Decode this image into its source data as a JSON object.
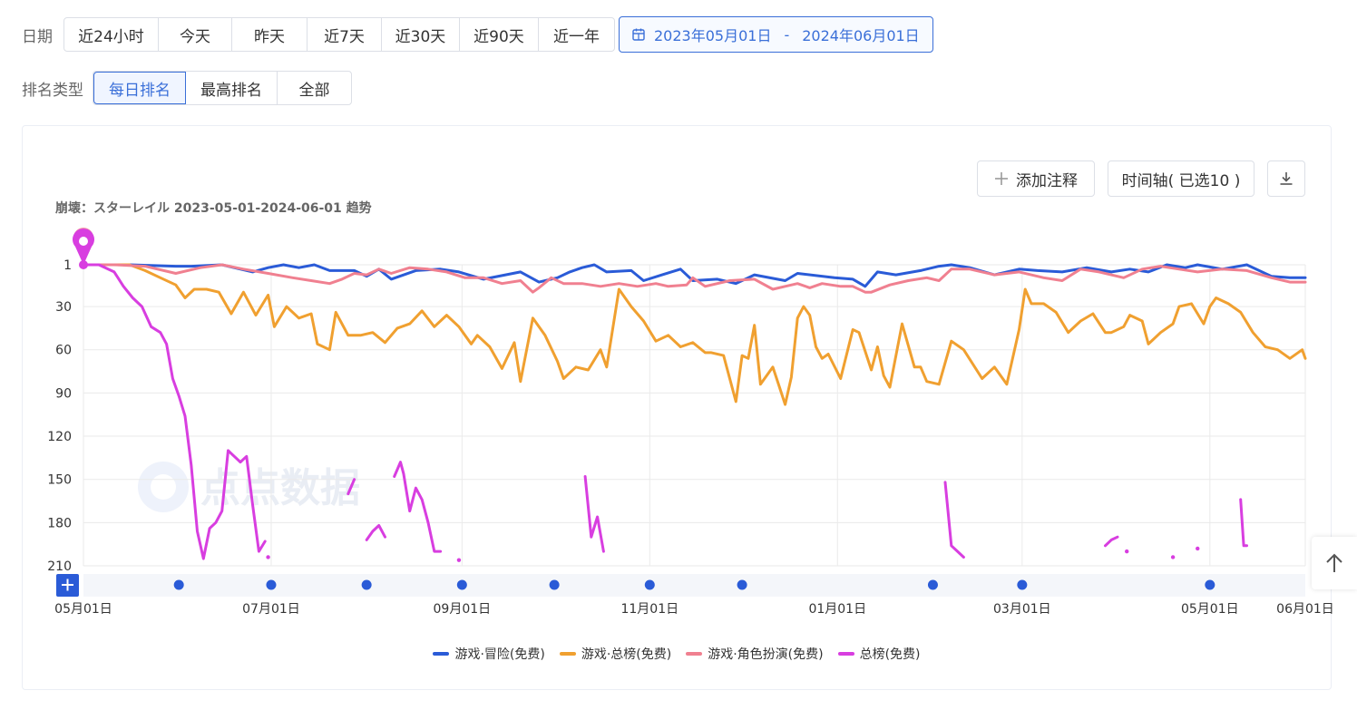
{
  "filters": {
    "date_label": "日期",
    "date_options": [
      "近24小时",
      "今天",
      "昨天",
      "近7天",
      "近30天",
      "近90天",
      "近一年"
    ],
    "date_range": {
      "start": "2023年05月01日",
      "separator": "-",
      "end": "2024年06月01日"
    },
    "rank_label": "排名类型",
    "rank_options": [
      "每日排名",
      "最高排名",
      "全部"
    ],
    "rank_selected": "每日排名"
  },
  "toolbar": {
    "add_note_label": "添加注释",
    "timeline_label": "时间轴( 已选10 )"
  },
  "watermark": "点点数据",
  "chart_data": {
    "type": "line",
    "title": "崩壊：スターレイル 2023-05-01-2024-06-01 趋势",
    "y_inverted": true,
    "ylim": [
      1,
      210
    ],
    "y_ticks": [
      "1",
      "30",
      "60",
      "90",
      "120",
      "150",
      "180",
      "210"
    ],
    "y_tick_values": [
      1,
      30,
      60,
      90,
      120,
      150,
      180,
      210
    ],
    "x_ticks": [
      "05月01日",
      "07月01日",
      "09月01日",
      "11月01日",
      "01月01日",
      "03月01日",
      "05月01日",
      "06月01日"
    ],
    "x_tick_days": [
      0,
      61,
      123,
      184,
      245,
      305,
      366,
      397
    ],
    "x_range_days": [
      0,
      397
    ],
    "grid": true,
    "legend_position": "bottom",
    "timeline_marker_days": [
      31,
      61,
      92,
      123,
      153,
      184,
      214,
      276,
      305,
      366
    ],
    "series": [
      {
        "name": "游戏·冒险(免费)",
        "color": "#2a5bd7",
        "points": [
          [
            0,
            1
          ],
          [
            15,
            1
          ],
          [
            30,
            2
          ],
          [
            35,
            2
          ],
          [
            45,
            1
          ],
          [
            55,
            6
          ],
          [
            60,
            3
          ],
          [
            65,
            1
          ],
          [
            70,
            3
          ],
          [
            75,
            1
          ],
          [
            80,
            5
          ],
          [
            88,
            5
          ],
          [
            92,
            9
          ],
          [
            96,
            4
          ],
          [
            100,
            11
          ],
          [
            108,
            5
          ],
          [
            116,
            4
          ],
          [
            122,
            6
          ],
          [
            130,
            11
          ],
          [
            142,
            6
          ],
          [
            148,
            13
          ],
          [
            154,
            10
          ],
          [
            158,
            6
          ],
          [
            162,
            3
          ],
          [
            166,
            1
          ],
          [
            170,
            6
          ],
          [
            178,
            5
          ],
          [
            182,
            12
          ],
          [
            188,
            8
          ],
          [
            194,
            4
          ],
          [
            198,
            12
          ],
          [
            206,
            11
          ],
          [
            212,
            14
          ],
          [
            218,
            8
          ],
          [
            228,
            12
          ],
          [
            232,
            7
          ],
          [
            244,
            10
          ],
          [
            250,
            11
          ],
          [
            254,
            16
          ],
          [
            258,
            6
          ],
          [
            264,
            8
          ],
          [
            272,
            5
          ],
          [
            278,
            2
          ],
          [
            282,
            1
          ],
          [
            288,
            3
          ],
          [
            296,
            8
          ],
          [
            304,
            4
          ],
          [
            310,
            5
          ],
          [
            318,
            6
          ],
          [
            326,
            3
          ],
          [
            334,
            6
          ],
          [
            340,
            4
          ],
          [
            346,
            6
          ],
          [
            352,
            1
          ],
          [
            358,
            3
          ],
          [
            362,
            1
          ],
          [
            370,
            4
          ],
          [
            378,
            1
          ],
          [
            386,
            9
          ],
          [
            392,
            10
          ],
          [
            397,
            10
          ]
        ]
      },
      {
        "name": "游戏·总榜(免费)",
        "color": "#f0a030",
        "points": [
          [
            0,
            1
          ],
          [
            15,
            1
          ],
          [
            20,
            5
          ],
          [
            25,
            10
          ],
          [
            30,
            15
          ],
          [
            33,
            24
          ],
          [
            36,
            18
          ],
          [
            40,
            18
          ],
          [
            44,
            20
          ],
          [
            48,
            35
          ],
          [
            52,
            20
          ],
          [
            56,
            36
          ],
          [
            60,
            22
          ],
          [
            62,
            44
          ],
          [
            66,
            30
          ],
          [
            70,
            38
          ],
          [
            74,
            35
          ],
          [
            76,
            56
          ],
          [
            80,
            60
          ],
          [
            82,
            34
          ],
          [
            86,
            50
          ],
          [
            90,
            50
          ],
          [
            94,
            48
          ],
          [
            98,
            55
          ],
          [
            102,
            45
          ],
          [
            106,
            42
          ],
          [
            110,
            33
          ],
          [
            114,
            44
          ],
          [
            118,
            36
          ],
          [
            122,
            44
          ],
          [
            126,
            56
          ],
          [
            128,
            50
          ],
          [
            132,
            58
          ],
          [
            136,
            73
          ],
          [
            140,
            55
          ],
          [
            142,
            82
          ],
          [
            146,
            38
          ],
          [
            150,
            50
          ],
          [
            154,
            68
          ],
          [
            156,
            80
          ],
          [
            160,
            72
          ],
          [
            164,
            74
          ],
          [
            168,
            60
          ],
          [
            170,
            72
          ],
          [
            174,
            18
          ],
          [
            178,
            30
          ],
          [
            182,
            40
          ],
          [
            186,
            54
          ],
          [
            190,
            50
          ],
          [
            194,
            58
          ],
          [
            198,
            55
          ],
          [
            202,
            62
          ],
          [
            204,
            62
          ],
          [
            208,
            64
          ],
          [
            212,
            96
          ],
          [
            214,
            64
          ],
          [
            216,
            66
          ],
          [
            218,
            43
          ],
          [
            220,
            84
          ],
          [
            224,
            72
          ],
          [
            226,
            85
          ],
          [
            228,
            98
          ],
          [
            230,
            79
          ],
          [
            232,
            38
          ],
          [
            234,
            30
          ],
          [
            236,
            36
          ],
          [
            238,
            58
          ],
          [
            240,
            66
          ],
          [
            242,
            63
          ],
          [
            246,
            80
          ],
          [
            250,
            46
          ],
          [
            252,
            48
          ],
          [
            256,
            74
          ],
          [
            258,
            58
          ],
          [
            260,
            78
          ],
          [
            262,
            86
          ],
          [
            266,
            42
          ],
          [
            270,
            72
          ],
          [
            272,
            72
          ],
          [
            274,
            82
          ],
          [
            278,
            84
          ],
          [
            282,
            54
          ],
          [
            286,
            60
          ],
          [
            292,
            80
          ],
          [
            296,
            72
          ],
          [
            300,
            84
          ],
          [
            304,
            46
          ],
          [
            306,
            18
          ],
          [
            308,
            28
          ],
          [
            312,
            28
          ],
          [
            316,
            34
          ],
          [
            320,
            48
          ],
          [
            324,
            40
          ],
          [
            328,
            35
          ],
          [
            332,
            48
          ],
          [
            334,
            48
          ],
          [
            338,
            44
          ],
          [
            340,
            36
          ],
          [
            344,
            40
          ],
          [
            346,
            56
          ],
          [
            350,
            48
          ],
          [
            354,
            42
          ],
          [
            356,
            30
          ],
          [
            360,
            28
          ],
          [
            364,
            42
          ],
          [
            366,
            30
          ],
          [
            368,
            24
          ],
          [
            372,
            28
          ],
          [
            376,
            34
          ],
          [
            380,
            48
          ],
          [
            384,
            58
          ],
          [
            388,
            60
          ],
          [
            392,
            66
          ],
          [
            396,
            60
          ],
          [
            397,
            66
          ]
        ]
      },
      {
        "name": "游戏·角色扮演(免费)",
        "color": "#f08090",
        "points": [
          [
            0,
            1
          ],
          [
            10,
            1
          ],
          [
            20,
            2
          ],
          [
            30,
            7
          ],
          [
            38,
            3
          ],
          [
            45,
            1
          ],
          [
            52,
            4
          ],
          [
            60,
            7
          ],
          [
            68,
            10
          ],
          [
            74,
            12
          ],
          [
            80,
            14
          ],
          [
            84,
            11
          ],
          [
            88,
            7
          ],
          [
            92,
            8
          ],
          [
            96,
            4
          ],
          [
            100,
            7
          ],
          [
            106,
            3
          ],
          [
            112,
            4
          ],
          [
            118,
            6
          ],
          [
            124,
            10
          ],
          [
            130,
            10
          ],
          [
            136,
            14
          ],
          [
            142,
            12
          ],
          [
            146,
            20
          ],
          [
            148,
            17
          ],
          [
            152,
            10
          ],
          [
            156,
            14
          ],
          [
            162,
            14
          ],
          [
            168,
            16
          ],
          [
            174,
            14
          ],
          [
            180,
            16
          ],
          [
            186,
            14
          ],
          [
            190,
            16
          ],
          [
            196,
            15
          ],
          [
            198,
            10
          ],
          [
            202,
            16
          ],
          [
            210,
            12
          ],
          [
            218,
            11
          ],
          [
            224,
            18
          ],
          [
            228,
            16
          ],
          [
            232,
            14
          ],
          [
            236,
            17
          ],
          [
            240,
            14
          ],
          [
            246,
            16
          ],
          [
            250,
            16
          ],
          [
            254,
            20
          ],
          [
            256,
            20
          ],
          [
            262,
            15
          ],
          [
            268,
            12
          ],
          [
            274,
            10
          ],
          [
            278,
            12
          ],
          [
            282,
            4
          ],
          [
            288,
            4
          ],
          [
            296,
            8
          ],
          [
            304,
            6
          ],
          [
            312,
            10
          ],
          [
            318,
            12
          ],
          [
            324,
            4
          ],
          [
            330,
            6
          ],
          [
            338,
            10
          ],
          [
            344,
            4
          ],
          [
            350,
            2
          ],
          [
            356,
            4
          ],
          [
            362,
            6
          ],
          [
            370,
            4
          ],
          [
            378,
            5
          ],
          [
            386,
            10
          ],
          [
            392,
            13
          ],
          [
            397,
            13
          ]
        ]
      },
      {
        "name": "总榜(免费)",
        "color": "#d83ee0",
        "points": [
          [
            0,
            1
          ],
          [
            5,
            1
          ],
          [
            10,
            6
          ],
          [
            13,
            16
          ],
          [
            16,
            24
          ],
          [
            19,
            30
          ],
          [
            22,
            44
          ],
          [
            25,
            48
          ],
          [
            27,
            56
          ],
          [
            29,
            80
          ],
          [
            31,
            92
          ],
          [
            33,
            106
          ],
          [
            35,
            140
          ],
          [
            37,
            186
          ],
          [
            39,
            205
          ],
          [
            41,
            184
          ],
          [
            43,
            180
          ],
          [
            45,
            172
          ],
          [
            47,
            130
          ],
          [
            49,
            134
          ],
          [
            51,
            138
          ],
          [
            53,
            134
          ],
          [
            55,
            168
          ],
          [
            57,
            200
          ],
          [
            59,
            193
          ],
          [
            null,
            null
          ],
          [
            60,
            204
          ],
          [
            null,
            null
          ],
          [
            86,
            160
          ],
          [
            88,
            150
          ],
          [
            null,
            null
          ],
          [
            92,
            192
          ],
          [
            94,
            186
          ],
          [
            96,
            182
          ],
          [
            98,
            190
          ],
          [
            null,
            null
          ],
          [
            101,
            148
          ],
          [
            103,
            138
          ],
          [
            104,
            146
          ],
          [
            106,
            172
          ],
          [
            108,
            156
          ],
          [
            110,
            164
          ],
          [
            112,
            180
          ],
          [
            114,
            200
          ],
          [
            116,
            200
          ],
          [
            null,
            null
          ],
          [
            122,
            206
          ],
          [
            null,
            null
          ],
          [
            163,
            148
          ],
          [
            165,
            190
          ],
          [
            167,
            176
          ],
          [
            169,
            200
          ],
          [
            null,
            null
          ],
          [
            280,
            152
          ],
          [
            282,
            196
          ],
          [
            284,
            200
          ],
          [
            286,
            204
          ],
          [
            null,
            null
          ],
          [
            332,
            196
          ],
          [
            334,
            192
          ],
          [
            336,
            190
          ],
          [
            null,
            null
          ],
          [
            339,
            200
          ],
          [
            null,
            null
          ],
          [
            354,
            204
          ],
          [
            null,
            null
          ],
          [
            362,
            198
          ],
          [
            null,
            null
          ],
          [
            376,
            164
          ],
          [
            377,
            196
          ],
          [
            378,
            196
          ]
        ]
      }
    ]
  }
}
